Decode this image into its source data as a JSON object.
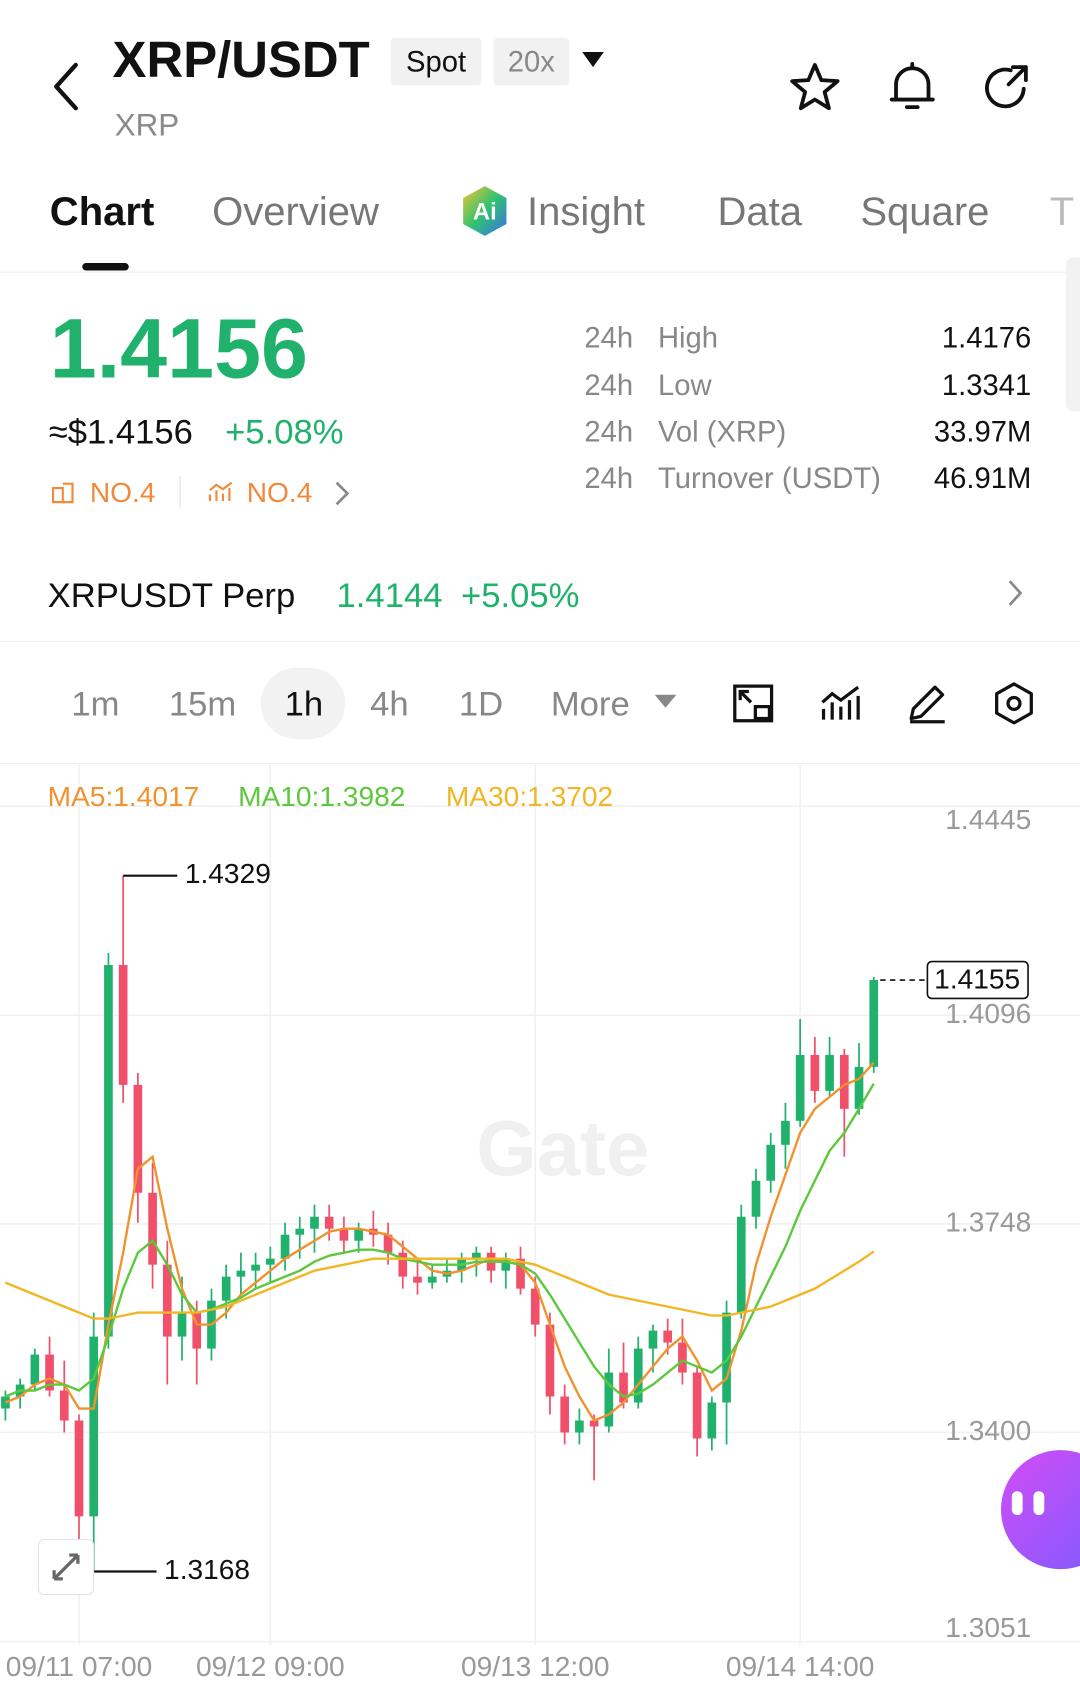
{
  "header": {
    "title": "XRP/USDT",
    "badges": [
      "Spot",
      "20x"
    ],
    "subtitle": "XRP"
  },
  "tabs": [
    "Chart",
    "Overview",
    "Insight",
    "Data",
    "Square",
    "T"
  ],
  "ticker": {
    "price": "1.4156",
    "usd": "≈$1.4156",
    "change": "+5.08%",
    "ranks": [
      "NO.4",
      "NO.4"
    ]
  },
  "stats": [
    [
      "24h",
      "High",
      "1.4176"
    ],
    [
      "24h",
      "Low",
      "1.3341"
    ],
    [
      "24h",
      "Vol (XRP)",
      "33.97M"
    ],
    [
      "24h",
      "Turnover (USDT)",
      "46.91M"
    ]
  ],
  "perp": {
    "name": "XRPUSDT Perp",
    "price": "1.4144",
    "change": "+5.05%"
  },
  "timeframes": [
    "1m",
    "15m",
    "1h",
    "4h",
    "1D",
    "More"
  ],
  "chart_data": {
    "type": "candlestick",
    "categories": [
      null,
      null,
      null,
      null,
      null,
      "09/11 07:00",
      null,
      null,
      null,
      null,
      null,
      null,
      null,
      null,
      null,
      null,
      null,
      null,
      "09/12 09:00",
      null,
      null,
      null,
      null,
      null,
      null,
      null,
      null,
      null,
      null,
      null,
      null,
      null,
      null,
      null,
      null,
      null,
      "09/13 12:00",
      null,
      null,
      null,
      null,
      null,
      null,
      null,
      null,
      null,
      null,
      null,
      null,
      null,
      null,
      null,
      null,
      null,
      "09/14 14:00",
      null,
      null,
      null,
      null,
      null
    ],
    "open": [
      1.344,
      1.346,
      1.348,
      1.353,
      1.347,
      1.342,
      1.326,
      1.356,
      1.418,
      1.398,
      1.38,
      1.368,
      1.356,
      1.36,
      1.354,
      1.362,
      1.366,
      1.367,
      1.368,
      1.369,
      1.373,
      1.374,
      1.376,
      1.374,
      1.372,
      1.374,
      1.373,
      1.37,
      1.366,
      1.365,
      1.366,
      1.367,
      1.369,
      1.37,
      1.367,
      1.369,
      1.364,
      1.358,
      1.346,
      1.34,
      1.342,
      1.341,
      1.35,
      1.345,
      1.354,
      1.357,
      1.355,
      1.35,
      1.339,
      1.345,
      1.36,
      1.376,
      1.382,
      1.388,
      1.392,
      1.403,
      1.397,
      1.403,
      1.394,
      1.401
    ],
    "high": [
      1.347,
      1.349,
      1.354,
      1.356,
      1.352,
      1.343,
      1.36,
      1.42,
      1.4329,
      1.4,
      1.385,
      1.372,
      1.366,
      1.362,
      1.364,
      1.368,
      1.37,
      1.37,
      1.371,
      1.375,
      1.376,
      1.378,
      1.378,
      1.376,
      1.375,
      1.377,
      1.375,
      1.372,
      1.369,
      1.368,
      1.369,
      1.37,
      1.371,
      1.371,
      1.37,
      1.371,
      1.366,
      1.36,
      1.348,
      1.344,
      1.343,
      1.354,
      1.355,
      1.356,
      1.358,
      1.359,
      1.359,
      1.351,
      1.346,
      1.362,
      1.378,
      1.384,
      1.39,
      1.395,
      1.409,
      1.406,
      1.406,
      1.404,
      1.405,
      1.416
    ],
    "low": [
      1.342,
      1.344,
      1.347,
      1.346,
      1.34,
      1.32,
      1.3168,
      1.354,
      1.395,
      1.375,
      1.364,
      1.348,
      1.352,
      1.348,
      1.352,
      1.359,
      1.363,
      1.364,
      1.365,
      1.367,
      1.369,
      1.37,
      1.372,
      1.37,
      1.37,
      1.371,
      1.368,
      1.364,
      1.363,
      1.364,
      1.365,
      1.365,
      1.366,
      1.365,
      1.364,
      1.363,
      1.356,
      1.343,
      1.338,
      1.338,
      1.332,
      1.34,
      1.344,
      1.344,
      1.35,
      1.353,
      1.348,
      1.336,
      1.337,
      1.338,
      1.359,
      1.374,
      1.38,
      1.384,
      1.391,
      1.395,
      1.396,
      1.386,
      1.393,
      1.4
    ],
    "close": [
      1.346,
      1.348,
      1.353,
      1.347,
      1.342,
      1.326,
      1.356,
      1.418,
      1.398,
      1.38,
      1.368,
      1.356,
      1.36,
      1.354,
      1.362,
      1.366,
      1.367,
      1.368,
      1.369,
      1.373,
      1.374,
      1.376,
      1.374,
      1.372,
      1.374,
      1.373,
      1.37,
      1.366,
      1.365,
      1.366,
      1.367,
      1.369,
      1.37,
      1.367,
      1.369,
      1.364,
      1.358,
      1.346,
      1.34,
      1.342,
      1.341,
      1.35,
      1.345,
      1.354,
      1.357,
      1.355,
      1.35,
      1.339,
      1.345,
      1.36,
      1.376,
      1.382,
      1.388,
      1.392,
      1.403,
      1.397,
      1.403,
      1.394,
      1.401,
      1.4155
    ],
    "up_color": "#20b26c",
    "down_color": "#f0506a",
    "series": [
      {
        "name": "MA5:1.4017",
        "color": "#f0922e",
        "values": [
          1.345,
          1.346,
          1.348,
          1.349,
          1.348,
          1.344,
          1.344,
          1.358,
          1.37,
          1.384,
          1.386,
          1.374,
          1.364,
          1.358,
          1.358,
          1.36,
          1.363,
          1.365,
          1.367,
          1.369,
          1.3705,
          1.372,
          1.3735,
          1.374,
          1.374,
          1.3735,
          1.373,
          1.371,
          1.369,
          1.367,
          1.3665,
          1.367,
          1.368,
          1.369,
          1.3685,
          1.368,
          1.365,
          1.358,
          1.351,
          1.346,
          1.342,
          1.343,
          1.345,
          1.348,
          1.351,
          1.354,
          1.356,
          1.352,
          1.347,
          1.349,
          1.357,
          1.368,
          1.376,
          1.383,
          1.39,
          1.394,
          1.396,
          1.398,
          1.399,
          1.4017
        ]
      },
      {
        "name": "MA10:1.3982",
        "color": "#5cc83c",
        "values": [
          1.346,
          1.347,
          1.347,
          1.348,
          1.348,
          1.347,
          1.349,
          1.356,
          1.364,
          1.37,
          1.372,
          1.368,
          1.363,
          1.36,
          1.3605,
          1.3615,
          1.3625,
          1.364,
          1.365,
          1.366,
          1.367,
          1.3685,
          1.3695,
          1.37,
          1.3705,
          1.3705,
          1.37,
          1.369,
          1.3685,
          1.368,
          1.368,
          1.368,
          1.3685,
          1.3685,
          1.3685,
          1.368,
          1.3665,
          1.363,
          1.359,
          1.355,
          1.351,
          1.348,
          1.346,
          1.3465,
          1.348,
          1.35,
          1.352,
          1.351,
          1.35,
          1.352,
          1.356,
          1.361,
          1.366,
          1.371,
          1.377,
          1.382,
          1.387,
          1.39,
          1.394,
          1.3982
        ]
      },
      {
        "name": "MA30:1.3702",
        "color": "#f2b624",
        "values": [
          1.365,
          1.364,
          1.363,
          1.362,
          1.361,
          1.36,
          1.359,
          1.359,
          1.3595,
          1.36,
          1.36,
          1.36,
          1.36,
          1.36,
          1.3605,
          1.361,
          1.362,
          1.363,
          1.364,
          1.365,
          1.366,
          1.367,
          1.3675,
          1.368,
          1.3685,
          1.369,
          1.369,
          1.369,
          1.369,
          1.369,
          1.369,
          1.369,
          1.369,
          1.369,
          1.369,
          1.3685,
          1.368,
          1.367,
          1.366,
          1.365,
          1.364,
          1.363,
          1.3625,
          1.362,
          1.3615,
          1.361,
          1.3605,
          1.36,
          1.3595,
          1.3595,
          1.36,
          1.3605,
          1.361,
          1.362,
          1.363,
          1.364,
          1.3655,
          1.367,
          1.3685,
          1.3702
        ]
      }
    ],
    "ylim": [
      1.3051,
      1.4445
    ],
    "yticks": [
      1.3051,
      {
        "value": 1.34,
        "label": "1.3400"
      },
      1.3748,
      1.4096,
      1.4445
    ],
    "grid": true,
    "max_label": 1.4329,
    "min_label": 1.3168,
    "last_price": 1.4155,
    "watermark": "Gate"
  }
}
